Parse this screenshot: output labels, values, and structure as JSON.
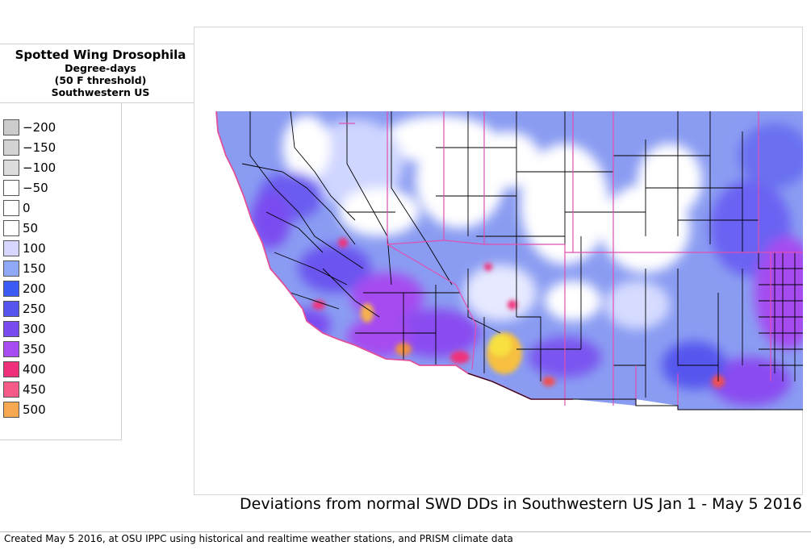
{
  "title": {
    "main": "Spotted Wing Drosophila",
    "line1": "Degree-days",
    "line2": "(50 F threshold)",
    "line3": "Southwestern US"
  },
  "legend": [
    {
      "label": "−200",
      "color": "#cccccc"
    },
    {
      "label": "−150",
      "color": "#d3d3d3"
    },
    {
      "label": "−100",
      "color": "#dcdcdc"
    },
    {
      "label": "−50",
      "color": "#ffffff"
    },
    {
      "label": "0",
      "color": "#ffffff"
    },
    {
      "label": "50",
      "color": "#ffffff"
    },
    {
      "label": "100",
      "color": "#d6d6ff"
    },
    {
      "label": "150",
      "color": "#8fa8f7"
    },
    {
      "label": "200",
      "color": "#3a5cf5"
    },
    {
      "label": "250",
      "color": "#5656ee"
    },
    {
      "label": "300",
      "color": "#7a4cf0"
    },
    {
      "label": "350",
      "color": "#a64cf0"
    },
    {
      "label": "400",
      "color": "#f0307a"
    },
    {
      "label": "450",
      "color": "#f55a88"
    },
    {
      "label": "500",
      "color": "#f7a850"
    }
  ],
  "caption": "Deviations from normal SWD DDs in Southwestern US Jan 1 - May 5 2016",
  "credit": "Created May 5 2016, at OSU IPPC using  historical and  realtime weather stations, and PRISM climate data"
}
